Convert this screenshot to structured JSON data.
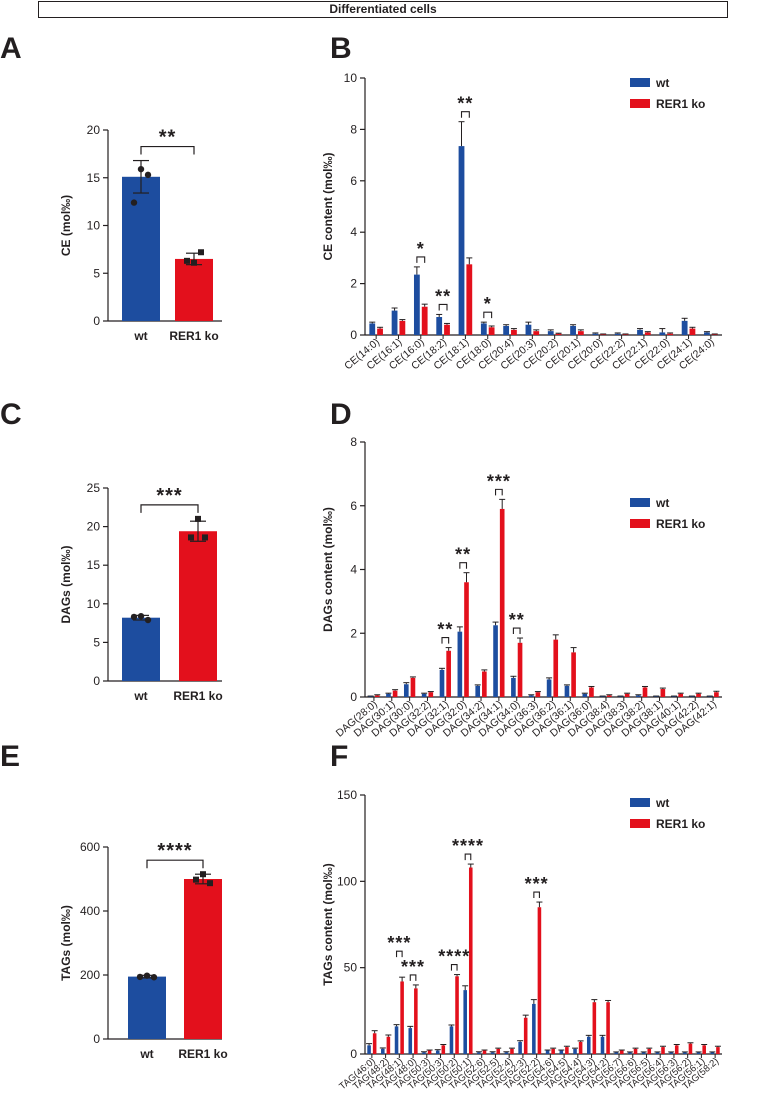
{
  "header": {
    "title": "Differentiated cells"
  },
  "colors": {
    "wt": "#1d4d9f",
    "ko": "#e3101c",
    "ink": "#231f20"
  },
  "chart_data": [
    {
      "id": "A",
      "type": "bar",
      "title": "",
      "ylabel": "CE  (mol‰)",
      "xlabel": "",
      "ylim": [
        0,
        20
      ],
      "yticks": [
        0,
        5,
        10,
        15,
        20
      ],
      "categories": [
        "wt",
        "RER1 ko"
      ],
      "values": [
        15.1,
        6.5
      ],
      "errors": [
        1.7,
        0.6
      ],
      "points": [
        [
          15.9,
          15.3,
          12.4
        ],
        [
          6.1,
          7.2,
          6.3
        ]
      ],
      "significance": [
        {
          "label": "**",
          "from": 0,
          "to": 1
        }
      ]
    },
    {
      "id": "B",
      "type": "bar",
      "title": "",
      "ylabel": "CE content (mol‰)",
      "xlabel": "",
      "ylim": [
        0,
        10
      ],
      "yticks": [
        0,
        2,
        4,
        6,
        8,
        10
      ],
      "categories": [
        "CE(14:0)",
        "CE(16:1)",
        "CE(16:0)",
        "CE(18:2)",
        "CE(18:1)",
        "CE(18:0)",
        "CE(20:4)",
        "CE(20:3)",
        "CE(20:2)",
        "CE(20:1)",
        "CE(20:0)",
        "CE(22:2)",
        "CE(22:1)",
        "CE(22:0)",
        "CE(24:1)",
        "CE(24:0)"
      ],
      "series": [
        {
          "name": "wt",
          "values": [
            0.45,
            0.95,
            2.35,
            0.7,
            7.35,
            0.45,
            0.35,
            0.4,
            0.15,
            0.35,
            0.05,
            0.05,
            0.2,
            0.1,
            0.55,
            0.1
          ],
          "errors": [
            0.05,
            0.1,
            0.3,
            0.1,
            0.95,
            0.05,
            0.05,
            0.1,
            0.05,
            0.05,
            0.03,
            0.03,
            0.05,
            0.15,
            0.1,
            0.03
          ]
        },
        {
          "name": "RER1 ko",
          "values": [
            0.25,
            0.55,
            1.1,
            0.4,
            2.75,
            0.3,
            0.2,
            0.15,
            0.05,
            0.15,
            0.02,
            0.02,
            0.1,
            0.05,
            0.25,
            0.02
          ],
          "errors": [
            0.05,
            0.05,
            0.1,
            0.05,
            0.25,
            0.05,
            0.05,
            0.05,
            0.02,
            0.05,
            0.02,
            0.02,
            0.03,
            0.03,
            0.05,
            0.02
          ]
        }
      ],
      "significance": [
        {
          "label": "*",
          "index": 2
        },
        {
          "label": "**",
          "index": 3
        },
        {
          "label": "**",
          "index": 4
        },
        {
          "label": "*",
          "index": 5
        }
      ],
      "legend": "top-right"
    },
    {
      "id": "C",
      "type": "bar",
      "title": "",
      "ylabel": "DAGs (mol‰)",
      "xlabel": "",
      "ylim": [
        0,
        25
      ],
      "yticks": [
        0,
        5,
        10,
        15,
        20,
        25
      ],
      "categories": [
        "wt",
        "RER1 ko"
      ],
      "values": [
        8.2,
        19.4
      ],
      "errors": [
        0.3,
        1.3
      ],
      "points": [
        [
          8.4,
          7.9,
          8.3
        ],
        [
          21.0,
          18.6,
          18.6
        ]
      ],
      "significance": [
        {
          "label": "***",
          "from": 0,
          "to": 1
        }
      ]
    },
    {
      "id": "D",
      "type": "bar",
      "title": "",
      "ylabel": "DAGs content (mol‰)",
      "xlabel": "",
      "ylim": [
        0,
        8
      ],
      "yticks": [
        0,
        2,
        4,
        6,
        8
      ],
      "categories": [
        "DAG(28:0)",
        "DAG(30:1)",
        "DAG(30:0)",
        "DAG(32:2)",
        "DAG(32:1)",
        "DAG(32:0)",
        "DAG(34:2)",
        "DAG(34:1)",
        "DAG(34:0)",
        "DAG(36:3)",
        "DAG(36:2)",
        "DAG(36:1)",
        "DAG(36:0)",
        "DAG(38:4)",
        "DAG(38:3)",
        "DAG(38:2)",
        "DAG(38:1)",
        "DAG(40:1)",
        "DAG(42:2)",
        "DAG(42:1)"
      ],
      "series": [
        {
          "name": "wt",
          "values": [
            0.02,
            0.1,
            0.4,
            0.1,
            0.85,
            2.05,
            0.35,
            2.25,
            0.6,
            0.05,
            0.55,
            0.35,
            0.1,
            0.02,
            0.02,
            0.05,
            0.02,
            0.02,
            0.02,
            0.02
          ],
          "errors": [
            0.01,
            0.02,
            0.05,
            0.02,
            0.05,
            0.15,
            0.03,
            0.1,
            0.05,
            0.02,
            0.05,
            0.03,
            0.02,
            0.01,
            0.01,
            0.02,
            0.01,
            0.01,
            0.01,
            0.01
          ]
        },
        {
          "name": "RER1 ko",
          "values": [
            0.05,
            0.2,
            0.6,
            0.15,
            1.45,
            3.6,
            0.8,
            5.9,
            1.7,
            0.15,
            1.8,
            1.4,
            0.3,
            0.05,
            0.1,
            0.3,
            0.25,
            0.1,
            0.1,
            0.15
          ],
          "errors": [
            0.02,
            0.03,
            0.03,
            0.02,
            0.1,
            0.3,
            0.05,
            0.3,
            0.15,
            0.02,
            0.15,
            0.15,
            0.03,
            0.02,
            0.02,
            0.03,
            0.03,
            0.02,
            0.02,
            0.03
          ]
        }
      ],
      "significance": [
        {
          "label": "**",
          "index": 4
        },
        {
          "label": "**",
          "index": 5
        },
        {
          "label": "***",
          "index": 7
        },
        {
          "label": "**",
          "index": 8
        }
      ],
      "legend": "top-right"
    },
    {
      "id": "E",
      "type": "bar",
      "title": "",
      "ylabel": "TAGs (mol‰)",
      "xlabel": "",
      "ylim": [
        0,
        600
      ],
      "yticks": [
        0,
        200,
        400,
        600
      ],
      "categories": [
        "wt",
        "RER1 ko"
      ],
      "values": [
        195,
        500
      ],
      "errors": [
        4,
        15
      ],
      "points": [
        [
          198,
          193,
          194
        ],
        [
          515,
          487,
          498
        ]
      ],
      "significance": [
        {
          "label": "****",
          "from": 0,
          "to": 1
        }
      ]
    },
    {
      "id": "F",
      "type": "bar",
      "title": "",
      "ylabel": "TAGs content (mol‰)",
      "xlabel": "",
      "ylim": [
        0,
        150
      ],
      "yticks": [
        0,
        50,
        100,
        150
      ],
      "categories": [
        "TAG(46:0)",
        "TAG(48:2)",
        "TAG(48:1)",
        "TAG(48:0)",
        "TAG(50:3)",
        "TAG(50:3)",
        "TAG(50:2)",
        "TAG(50:1)",
        "TAG(52:6)",
        "TAG(52:5)",
        "TAG(52:4)",
        "TAG(52:3)",
        "TAG(52:2)",
        "TAG(54:6)",
        "TAG(54:5)",
        "TAG(54:4)",
        "TAG(54:3)",
        "TAG(54:2)",
        "TAG(56:7)",
        "TAG(56:6)",
        "TAG(56:5)",
        "TAG(56:4)",
        "TAG(56:3)",
        "TAG(56:2)",
        "TAG(56:1)",
        "TAG(58:2)"
      ],
      "series": [
        {
          "name": "wt",
          "values": [
            5,
            3,
            16,
            15,
            1,
            2,
            16,
            37,
            1,
            1,
            1,
            7,
            29,
            2,
            2,
            3,
            10,
            10,
            1,
            1,
            1,
            1,
            1,
            1,
            1,
            1
          ],
          "errors": [
            1,
            0.5,
            1,
            1,
            0.3,
            0.5,
            0.8,
            2.5,
            0.3,
            0.3,
            0.3,
            0.7,
            2.5,
            0.3,
            0.3,
            0.4,
            0.8,
            0.8,
            0.2,
            0.2,
            0.2,
            0.2,
            0.2,
            0.2,
            0.2,
            0.2
          ]
        },
        {
          "name": "RER1 ko",
          "values": [
            12,
            10,
            42,
            38,
            2,
            5,
            45,
            108,
            2,
            3,
            3,
            21,
            85,
            3,
            4,
            7,
            30,
            30,
            2,
            3,
            3,
            4,
            5,
            6,
            5,
            4
          ],
          "errors": [
            1.5,
            1,
            2.5,
            2,
            0.3,
            0.5,
            1,
            2,
            0.3,
            0.4,
            0.4,
            1.5,
            3,
            0.4,
            0.5,
            0.6,
            1.5,
            1,
            0.3,
            0.4,
            0.4,
            0.5,
            0.5,
            0.5,
            0.5,
            0.5
          ]
        }
      ],
      "significance": [
        {
          "label": "***",
          "index": 2
        },
        {
          "label": "***",
          "index": 3
        },
        {
          "label": "****",
          "index": 6
        },
        {
          "label": "****",
          "index": 7
        },
        {
          "label": "***",
          "index": 12
        }
      ],
      "legend": "top-right"
    }
  ]
}
